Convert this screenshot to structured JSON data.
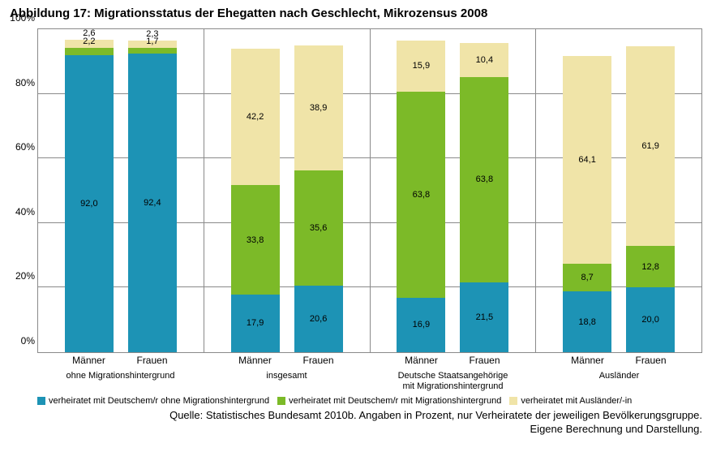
{
  "title": "Abbildung 17:  Migrationsstatus der Ehegatten nach Geschlecht, Mikrozensus 2008",
  "chart": {
    "type": "stacked-bar-100",
    "ylim": [
      0,
      100
    ],
    "ytick_step": 20,
    "yticks": [
      "0%",
      "20%",
      "40%",
      "60%",
      "80%",
      "100%"
    ],
    "grid_color": "#8a8a8a",
    "background_color": "#ffffff",
    "series": [
      {
        "key": "s1",
        "label": "verheiratet mit Deutschem/r ohne Migrationshintergrund",
        "color": "#1d93b5"
      },
      {
        "key": "s2",
        "label": "verheiratet mit Deutschem/r mit Migrationshintergrund",
        "color": "#7cba28"
      },
      {
        "key": "s3",
        "label": "verheiratet mit Ausländer/-in",
        "color": "#f0e4a8"
      }
    ],
    "data_label_fontsize": 11,
    "axis_label_fontsize": 12,
    "groups": [
      {
        "label": "ohne Migrationshintergrund",
        "bars": [
          {
            "cat": "Männer",
            "s1": 92.0,
            "s2": 2.2,
            "s3": 2.6
          },
          {
            "cat": "Frauen",
            "s1": 92.4,
            "s2": 1.7,
            "s3": 2.3
          }
        ]
      },
      {
        "label": "insgesamt",
        "bars": [
          {
            "cat": "Männer",
            "s1": 17.9,
            "s2": 33.8,
            "s3": 42.2
          },
          {
            "cat": "Frauen",
            "s1": 20.6,
            "s2": 35.6,
            "s3": 38.9
          }
        ]
      },
      {
        "label": "Deutsche Staatsangehörige\nmit Migrationshintergrund",
        "bars": [
          {
            "cat": "Männer",
            "s1": 16.9,
            "s2": 63.8,
            "s3": 15.9
          },
          {
            "cat": "Frauen",
            "s1": 21.5,
            "s2": 63.8,
            "s3": 10.4
          }
        ]
      },
      {
        "label": "Ausländer",
        "bars": [
          {
            "cat": "Männer",
            "s1": 18.8,
            "s2": 8.7,
            "s3": 64.1
          },
          {
            "cat": "Frauen",
            "s1": 20.0,
            "s2": 12.8,
            "s3": 61.9
          }
        ]
      }
    ]
  },
  "source_line1": "Quelle: Statistisches Bundesamt 2010b. Angaben in Prozent, nur Verheiratete der jeweiligen Bevölkerungsgruppe.",
  "source_line2": "Eigene Berechnung und Darstellung."
}
